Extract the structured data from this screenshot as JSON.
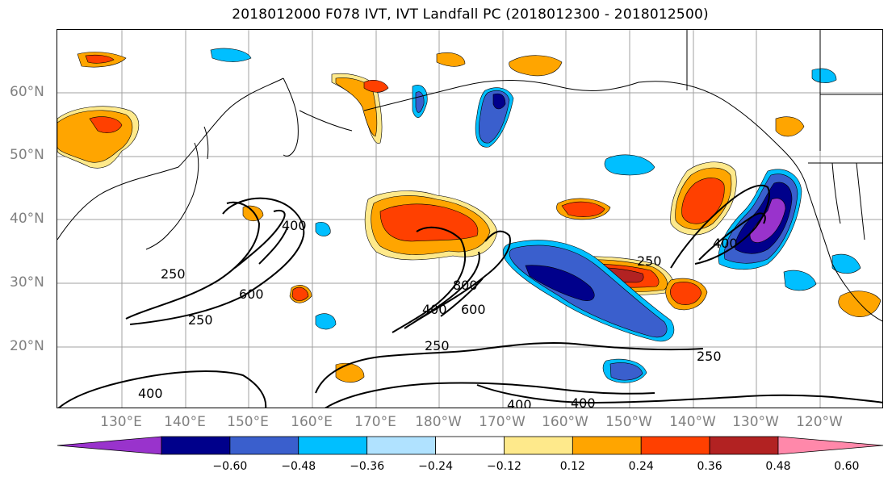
{
  "title": "2018012000 F078 IVT, IVT Landfall PC (2018012300 - 2018012500)",
  "map": {
    "lat_labels": [
      "60°N",
      "50°N",
      "40°N",
      "30°N",
      "20°N"
    ],
    "lon_labels": [
      "130°E",
      "140°E",
      "150°E",
      "160°E",
      "170°E",
      "180°W",
      "170°W",
      "160°W",
      "150°W",
      "140°W",
      "130°W",
      "120°W"
    ],
    "contour_labels": {
      "c250_a": "250",
      "c600_a": "600",
      "c250_b": "250",
      "c400_a": "400",
      "c400_b": "400",
      "c800": "800",
      "c600_b": "600",
      "c250_c": "250",
      "c400_c": "400",
      "c250_d": "250",
      "c400_d": "400",
      "c400_e": "400",
      "c400_f": "400",
      "c250_e": "250"
    }
  },
  "colorbar": {
    "colors": [
      "#9933cc",
      "#00008b",
      "#3a5fcd",
      "#00bfff",
      "#b0e2ff",
      "#ffffff",
      "#fee98b",
      "#ffa500",
      "#ff4000",
      "#b22222",
      "#ff88aa"
    ],
    "labels": [
      "−0.60",
      "−0.48",
      "−0.36",
      "−0.24",
      "−0.12",
      "0.12",
      "0.24",
      "0.36",
      "0.48",
      "0.60"
    ]
  }
}
